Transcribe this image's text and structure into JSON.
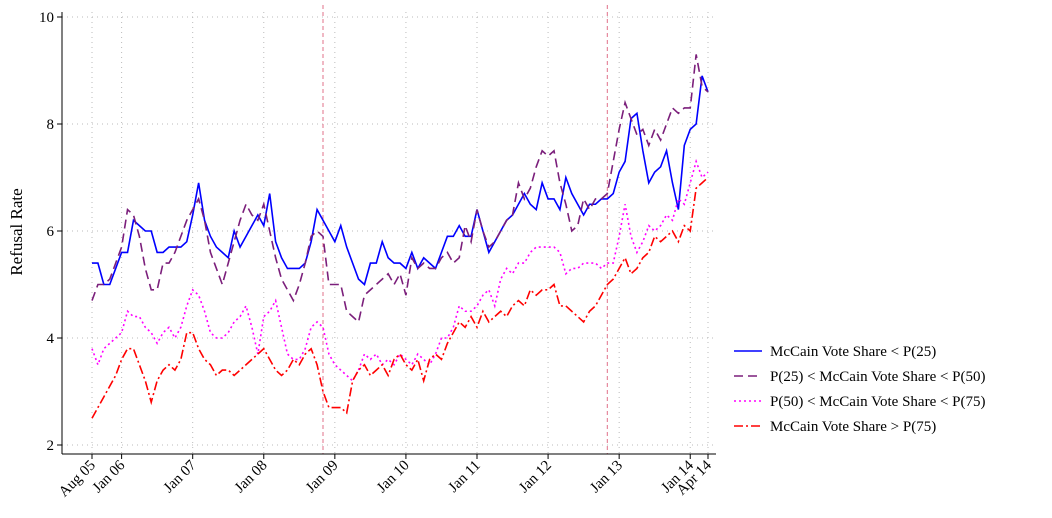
{
  "chart_data": {
    "type": "line",
    "y_label": "Refusal Rate",
    "categories": [
      "Aug 05",
      null,
      null,
      null,
      null,
      "Jan 06",
      null,
      null,
      null,
      null,
      null,
      null,
      null,
      null,
      null,
      null,
      null,
      "Jan 07",
      null,
      null,
      null,
      null,
      null,
      null,
      null,
      null,
      null,
      null,
      null,
      "Jan 08",
      null,
      null,
      null,
      null,
      null,
      null,
      null,
      null,
      null,
      null,
      null,
      "Jan 09",
      null,
      null,
      null,
      null,
      null,
      null,
      null,
      null,
      null,
      null,
      null,
      "Jan 10",
      null,
      null,
      null,
      null,
      null,
      null,
      null,
      null,
      null,
      null,
      null,
      "Jan 11",
      null,
      null,
      null,
      null,
      null,
      null,
      null,
      null,
      null,
      null,
      null,
      "Jan 12",
      null,
      null,
      null,
      null,
      null,
      null,
      null,
      null,
      null,
      null,
      null,
      "Jan 13",
      null,
      null,
      null,
      null,
      null,
      null,
      null,
      null,
      null,
      null,
      null,
      "Jan 14",
      null,
      null,
      "Apr 14"
    ],
    "ylim": [
      2,
      10
    ],
    "yticks": [
      2,
      4,
      6,
      8,
      10
    ],
    "grid": true,
    "vlines": [
      39,
      87
    ],
    "vline_color": "#e0708a",
    "legend": "right",
    "series": [
      {
        "name": "McCain Vote Share < P(25)",
        "color": "#0000ff",
        "style": "solid",
        "values": [
          5.4,
          5.4,
          5.0,
          5.0,
          5.3,
          5.6,
          5.6,
          6.2,
          6.1,
          6.0,
          6.0,
          5.6,
          5.6,
          5.7,
          5.7,
          5.7,
          5.8,
          6.3,
          6.9,
          6.2,
          5.9,
          5.7,
          5.6,
          5.5,
          6.0,
          5.7,
          5.9,
          6.1,
          6.3,
          6.1,
          6.7,
          5.8,
          5.5,
          5.3,
          5.3,
          5.3,
          5.4,
          5.8,
          6.4,
          6.2,
          6.0,
          5.8,
          6.1,
          5.7,
          5.4,
          5.1,
          5.0,
          5.4,
          5.4,
          5.8,
          5.5,
          5.4,
          5.4,
          5.3,
          5.6,
          5.3,
          5.5,
          5.4,
          5.3,
          5.6,
          5.9,
          5.9,
          6.1,
          5.9,
          5.9,
          6.4,
          6.0,
          5.6,
          5.8,
          6.0,
          6.2,
          6.3,
          6.5,
          6.7,
          6.5,
          6.4,
          6.9,
          6.6,
          6.6,
          6.4,
          7.0,
          6.7,
          6.5,
          6.3,
          6.5,
          6.5,
          6.6,
          6.6,
          6.7,
          7.1,
          7.3,
          8.1,
          8.2,
          7.5,
          6.9,
          7.1,
          7.2,
          7.5,
          6.9,
          6.4,
          7.6,
          7.9,
          8.0,
          8.9,
          8.6
        ]
      },
      {
        "name": "P(25) < McCain Vote Share < P(50)",
        "color": "#7b1f7b",
        "style": "dashed",
        "values": [
          4.7,
          5.0,
          5.0,
          5.1,
          5.4,
          5.7,
          6.4,
          6.3,
          5.9,
          5.3,
          4.9,
          4.9,
          5.4,
          5.4,
          5.6,
          5.9,
          6.2,
          6.4,
          6.6,
          6.2,
          5.6,
          5.3,
          5.0,
          5.4,
          5.8,
          6.2,
          6.5,
          6.3,
          6.2,
          6.5,
          6.0,
          5.5,
          5.1,
          4.9,
          4.7,
          5.0,
          5.4,
          5.9,
          6.0,
          5.9,
          5.0,
          5.0,
          5.0,
          4.5,
          4.4,
          4.3,
          4.8,
          4.9,
          5.0,
          5.1,
          5.2,
          5.0,
          5.2,
          4.8,
          5.5,
          5.3,
          5.4,
          5.3,
          5.3,
          5.5,
          5.6,
          5.4,
          5.5,
          6.1,
          5.8,
          6.4,
          6.0,
          5.7,
          5.8,
          6.0,
          6.2,
          6.3,
          6.9,
          6.6,
          6.8,
          7.2,
          7.5,
          7.4,
          7.5,
          6.9,
          6.5,
          6.0,
          6.1,
          6.6,
          6.4,
          6.6,
          6.6,
          6.7,
          7.3,
          7.9,
          8.4,
          8.1,
          7.8,
          7.9,
          7.6,
          7.9,
          7.7,
          8.0,
          8.3,
          8.2,
          8.3,
          8.3,
          9.3,
          8.7,
          8.6
        ]
      },
      {
        "name": "P(50) < McCain Vote Share < P(75)",
        "color": "#ff00ff",
        "style": "dotted",
        "values": [
          3.8,
          3.5,
          3.8,
          3.9,
          4.0,
          4.1,
          4.5,
          4.4,
          4.4,
          4.2,
          4.1,
          3.9,
          4.1,
          4.2,
          4.0,
          4.2,
          4.6,
          4.9,
          4.8,
          4.5,
          4.1,
          4.0,
          4.0,
          4.1,
          4.3,
          4.4,
          4.6,
          4.2,
          3.7,
          4.4,
          4.5,
          4.7,
          4.2,
          3.7,
          3.6,
          3.6,
          3.8,
          4.2,
          4.3,
          4.2,
          3.7,
          3.5,
          3.4,
          3.3,
          3.2,
          3.4,
          3.7,
          3.6,
          3.7,
          3.5,
          3.6,
          3.5,
          3.7,
          3.6,
          3.5,
          3.7,
          3.6,
          3.5,
          3.7,
          4.0,
          4.0,
          4.2,
          4.6,
          4.5,
          4.5,
          4.6,
          4.8,
          4.9,
          4.6,
          5.1,
          5.3,
          5.2,
          5.4,
          5.4,
          5.6,
          5.7,
          5.7,
          5.7,
          5.7,
          5.6,
          5.2,
          5.3,
          5.3,
          5.4,
          5.4,
          5.4,
          5.3,
          5.4,
          5.4,
          5.9,
          6.5,
          5.9,
          5.6,
          5.8,
          6.1,
          6.0,
          6.1,
          6.3,
          6.2,
          6.6,
          6.5,
          6.9,
          7.3,
          7.0,
          7.1
        ]
      },
      {
        "name": "McCain Vote Share > P(75)",
        "color": "#ff0000",
        "style": "dashdot",
        "values": [
          2.5,
          2.7,
          2.9,
          3.1,
          3.3,
          3.6,
          3.8,
          3.8,
          3.5,
          3.2,
          2.8,
          3.2,
          3.4,
          3.5,
          3.4,
          3.6,
          4.1,
          4.1,
          3.8,
          3.6,
          3.5,
          3.3,
          3.4,
          3.4,
          3.3,
          3.4,
          3.5,
          3.6,
          3.7,
          3.8,
          3.6,
          3.4,
          3.3,
          3.4,
          3.6,
          3.5,
          3.7,
          3.8,
          3.5,
          3.0,
          2.7,
          2.7,
          2.7,
          2.6,
          3.2,
          3.4,
          3.5,
          3.3,
          3.4,
          3.5,
          3.3,
          3.6,
          3.7,
          3.5,
          3.4,
          3.6,
          3.2,
          3.6,
          3.7,
          3.6,
          3.9,
          4.1,
          4.3,
          4.2,
          4.4,
          4.2,
          4.5,
          4.3,
          4.4,
          4.5,
          4.4,
          4.6,
          4.7,
          4.6,
          4.9,
          4.8,
          4.9,
          4.9,
          5.0,
          4.6,
          4.6,
          4.5,
          4.4,
          4.3,
          4.5,
          4.6,
          4.8,
          5.0,
          5.1,
          5.3,
          5.5,
          5.2,
          5.3,
          5.5,
          5.6,
          5.9,
          5.8,
          5.9,
          6.0,
          5.8,
          6.1,
          6.0,
          6.8,
          6.9,
          7.0
        ]
      }
    ]
  }
}
